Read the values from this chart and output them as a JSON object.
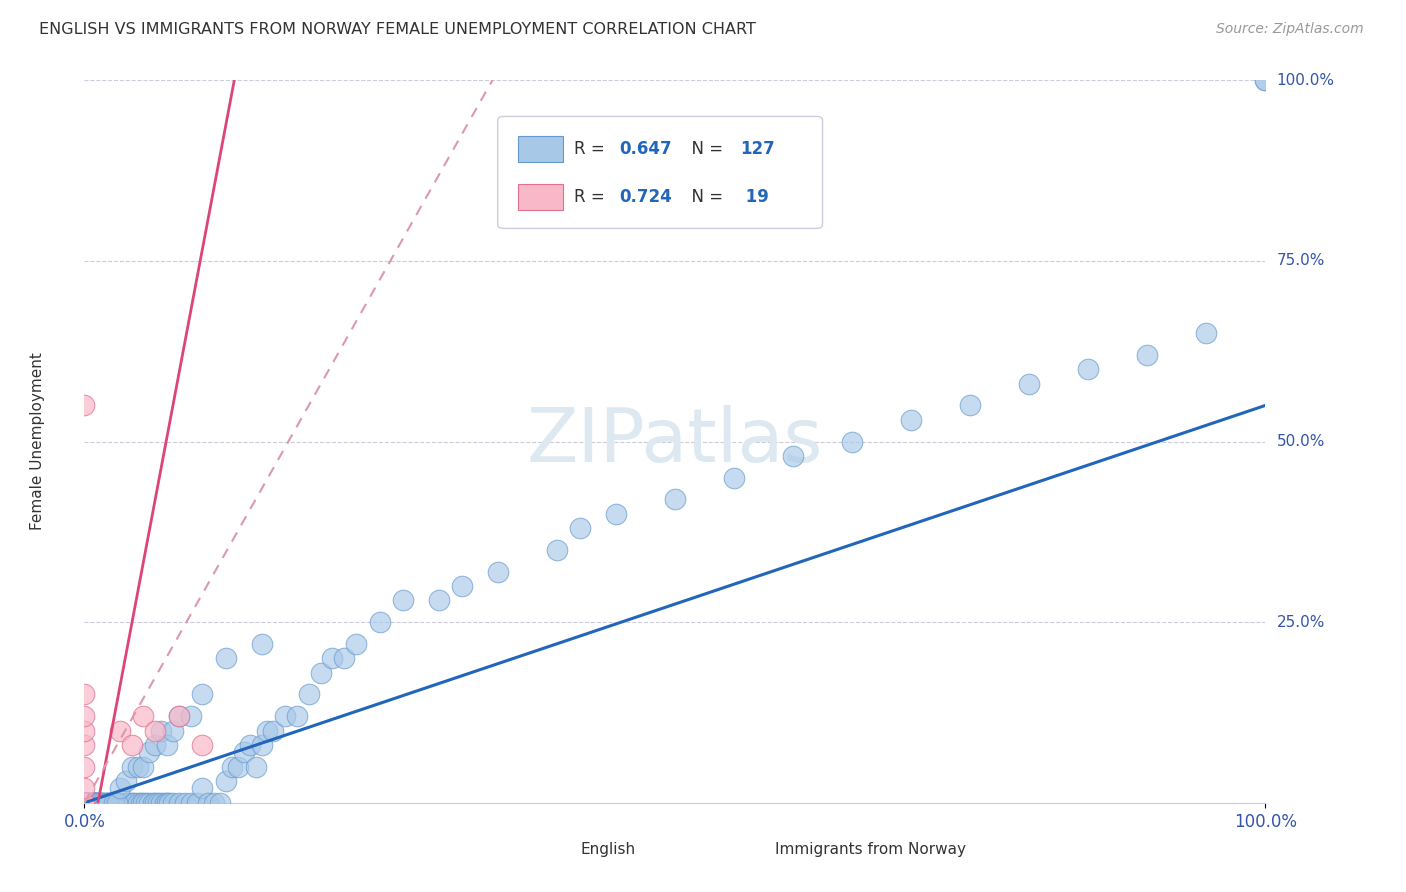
{
  "title": "ENGLISH VS IMMIGRANTS FROM NORWAY FEMALE UNEMPLOYMENT CORRELATION CHART",
  "source": "Source: ZipAtlas.com",
  "ylabel": "Female Unemployment",
  "ytick_labels": [
    "0.0%",
    "25.0%",
    "50.0%",
    "75.0%",
    "100.0%"
  ],
  "ytick_values": [
    0.0,
    0.25,
    0.5,
    0.75,
    1.0
  ],
  "xtick_labels": [
    "0.0%",
    "100.0%"
  ],
  "xtick_values": [
    0.0,
    1.0
  ],
  "legend1_R": "0.647",
  "legend1_N": "127",
  "legend2_R": "0.724",
  "legend2_N": " 19",
  "english_color": "#a8c8e8",
  "english_edge_color": "#6699cc",
  "norway_color": "#f8b8c8",
  "norway_edge_color": "#e07090",
  "trend_english_color": "#2266bb",
  "trend_norway_color": "#dd4477",
  "trend_norway_dash_color": "#dd99aa",
  "watermark_color": "#dde8f0",
  "grid_color": "#ccccdd",
  "english_x": [
    0.0,
    0.0,
    0.0,
    0.0,
    0.0,
    0.0,
    0.0,
    0.0,
    0.0,
    0.0,
    0.002,
    0.003,
    0.004,
    0.005,
    0.006,
    0.007,
    0.008,
    0.009,
    0.01,
    0.011,
    0.012,
    0.013,
    0.015,
    0.016,
    0.018,
    0.02,
    0.022,
    0.025,
    0.028,
    0.03,
    0.032,
    0.035,
    0.038,
    0.04,
    0.042,
    0.045,
    0.048,
    0.05,
    0.052,
    0.055,
    0.058,
    0.06,
    0.062,
    0.065,
    0.068,
    0.07,
    0.072,
    0.075,
    0.08,
    0.085,
    0.09,
    0.095,
    0.1,
    0.105,
    0.11,
    0.115,
    0.12,
    0.125,
    0.13,
    0.135,
    0.14,
    0.145,
    0.15,
    0.155,
    0.16,
    0.17,
    0.18,
    0.19,
    0.2,
    0.21,
    0.22,
    0.23,
    0.25,
    0.27,
    0.3,
    0.32,
    0.35,
    0.4,
    0.42,
    0.45,
    0.5,
    0.55,
    0.6,
    0.65,
    0.7,
    0.75,
    0.8,
    0.85,
    0.9,
    0.95,
    1.0,
    1.0,
    0.001,
    0.001,
    0.001,
    0.002,
    0.003,
    0.004,
    0.005,
    0.006,
    0.007,
    0.008,
    0.009,
    0.01,
    0.01,
    0.01,
    0.012,
    0.015,
    0.018,
    0.02,
    0.025,
    0.028,
    0.03,
    0.035,
    0.04,
    0.045,
    0.05,
    0.055,
    0.06,
    0.065,
    0.07,
    0.075,
    0.08,
    0.09,
    0.1,
    0.12,
    0.15
  ],
  "english_y": [
    0.0,
    0.0,
    0.0,
    0.0,
    0.0,
    0.0,
    0.0,
    0.0,
    0.0,
    0.0,
    0.0,
    0.0,
    0.0,
    0.0,
    0.0,
    0.0,
    0.0,
    0.0,
    0.0,
    0.0,
    0.0,
    0.0,
    0.0,
    0.0,
    0.0,
    0.0,
    0.0,
    0.0,
    0.0,
    0.0,
    0.0,
    0.0,
    0.0,
    0.0,
    0.0,
    0.0,
    0.0,
    0.0,
    0.0,
    0.0,
    0.0,
    0.0,
    0.0,
    0.0,
    0.0,
    0.0,
    0.0,
    0.0,
    0.0,
    0.0,
    0.0,
    0.0,
    0.02,
    0.0,
    0.0,
    0.0,
    0.03,
    0.05,
    0.05,
    0.07,
    0.08,
    0.05,
    0.08,
    0.1,
    0.1,
    0.12,
    0.12,
    0.15,
    0.18,
    0.2,
    0.2,
    0.22,
    0.25,
    0.28,
    0.28,
    0.3,
    0.32,
    0.35,
    0.38,
    0.4,
    0.42,
    0.45,
    0.48,
    0.5,
    0.53,
    0.55,
    0.58,
    0.6,
    0.62,
    0.65,
    1.0,
    1.0,
    0.0,
    0.0,
    0.0,
    0.0,
    0.0,
    0.0,
    0.0,
    0.0,
    0.0,
    0.0,
    0.0,
    0.0,
    0.0,
    0.0,
    0.0,
    0.0,
    0.0,
    0.0,
    0.0,
    0.0,
    0.02,
    0.03,
    0.05,
    0.05,
    0.05,
    0.07,
    0.08,
    0.1,
    0.08,
    0.1,
    0.12,
    0.12,
    0.15,
    0.2,
    0.22
  ],
  "norway_x": [
    0.0,
    0.0,
    0.0,
    0.0,
    0.0,
    0.0,
    0.0,
    0.0,
    0.0,
    0.0,
    0.0,
    0.0,
    0.0,
    0.03,
    0.04,
    0.05,
    0.06,
    0.08,
    0.1
  ],
  "norway_y": [
    0.0,
    0.0,
    0.0,
    0.0,
    0.0,
    0.0,
    0.02,
    0.05,
    0.08,
    0.1,
    0.12,
    0.15,
    0.55,
    0.1,
    0.08,
    0.12,
    0.1,
    0.12,
    0.08
  ]
}
